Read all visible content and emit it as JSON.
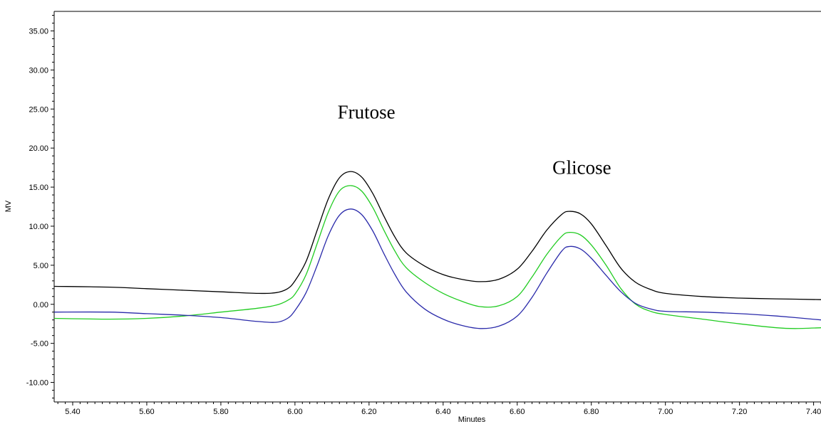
{
  "chart_data": {
    "type": "line",
    "title": "",
    "xlabel": "Minutes",
    "ylabel": "MV",
    "xlim": [
      5.35,
      7.42
    ],
    "ylim": [
      -12.5,
      37.5
    ],
    "grid": false,
    "x_ticks": [
      {
        "value": 5.4,
        "label": "5.40"
      },
      {
        "value": 5.6,
        "label": "5.60"
      },
      {
        "value": 5.8,
        "label": "5.80"
      },
      {
        "value": 6.0,
        "label": "6.00"
      },
      {
        "value": 6.2,
        "label": "6.20"
      },
      {
        "value": 6.4,
        "label": "6.40"
      },
      {
        "value": 6.6,
        "label": "6.60"
      },
      {
        "value": 6.8,
        "label": "6.80"
      },
      {
        "value": 7.0,
        "label": "7.00"
      },
      {
        "value": 7.2,
        "label": "7.20"
      },
      {
        "value": 7.4,
        "label": "7.40"
      }
    ],
    "y_ticks": [
      {
        "value": -10,
        "label": "-10.00"
      },
      {
        "value": -5,
        "label": "-5.00"
      },
      {
        "value": 0,
        "label": "0.00"
      },
      {
        "value": 5,
        "label": "5.00"
      },
      {
        "value": 10,
        "label": "10.00"
      },
      {
        "value": 15,
        "label": "15.00"
      },
      {
        "value": 20,
        "label": "20.00"
      },
      {
        "value": 25,
        "label": "25.00"
      },
      {
        "value": 30,
        "label": "30.00"
      },
      {
        "value": 35,
        "label": "35.00"
      }
    ],
    "series": [
      {
        "color": "#000000",
        "points": [
          [
            5.35,
            2.3
          ],
          [
            5.5,
            2.2
          ],
          [
            5.6,
            2.0
          ],
          [
            5.7,
            1.8
          ],
          [
            5.8,
            1.6
          ],
          [
            5.9,
            1.4
          ],
          [
            5.95,
            1.5
          ],
          [
            5.98,
            2.0
          ],
          [
            6.0,
            3.0
          ],
          [
            6.03,
            5.5
          ],
          [
            6.06,
            9.5
          ],
          [
            6.09,
            13.5
          ],
          [
            6.12,
            16.2
          ],
          [
            6.15,
            17.0
          ],
          [
            6.18,
            16.3
          ],
          [
            6.21,
            14.2
          ],
          [
            6.24,
            11.3
          ],
          [
            6.27,
            8.6
          ],
          [
            6.3,
            6.6
          ],
          [
            6.35,
            4.9
          ],
          [
            6.4,
            3.8
          ],
          [
            6.45,
            3.2
          ],
          [
            6.5,
            2.9
          ],
          [
            6.55,
            3.2
          ],
          [
            6.6,
            4.5
          ],
          [
            6.64,
            6.8
          ],
          [
            6.68,
            9.5
          ],
          [
            6.72,
            11.5
          ],
          [
            6.74,
            11.9
          ],
          [
            6.77,
            11.6
          ],
          [
            6.8,
            10.3
          ],
          [
            6.84,
            7.5
          ],
          [
            6.88,
            4.6
          ],
          [
            6.92,
            2.8
          ],
          [
            6.96,
            1.9
          ],
          [
            7.0,
            1.4
          ],
          [
            7.1,
            1.0
          ],
          [
            7.2,
            0.8
          ],
          [
            7.3,
            0.7
          ],
          [
            7.42,
            0.6
          ]
        ]
      },
      {
        "color": "#22cc22",
        "points": [
          [
            5.35,
            -1.8
          ],
          [
            5.5,
            -1.9
          ],
          [
            5.6,
            -1.8
          ],
          [
            5.7,
            -1.5
          ],
          [
            5.8,
            -1.0
          ],
          [
            5.9,
            -0.5
          ],
          [
            5.95,
            -0.1
          ],
          [
            5.98,
            0.5
          ],
          [
            6.0,
            1.3
          ],
          [
            6.03,
            3.8
          ],
          [
            6.06,
            7.8
          ],
          [
            6.09,
            11.8
          ],
          [
            6.12,
            14.5
          ],
          [
            6.15,
            15.2
          ],
          [
            6.18,
            14.5
          ],
          [
            6.21,
            12.4
          ],
          [
            6.24,
            9.5
          ],
          [
            6.27,
            6.8
          ],
          [
            6.3,
            4.7
          ],
          [
            6.35,
            2.8
          ],
          [
            6.4,
            1.4
          ],
          [
            6.45,
            0.4
          ],
          [
            6.5,
            -0.3
          ],
          [
            6.55,
            -0.2
          ],
          [
            6.6,
            1.0
          ],
          [
            6.64,
            3.5
          ],
          [
            6.68,
            6.4
          ],
          [
            6.72,
            8.7
          ],
          [
            6.74,
            9.2
          ],
          [
            6.77,
            8.9
          ],
          [
            6.8,
            7.6
          ],
          [
            6.84,
            5.0
          ],
          [
            6.88,
            2.0
          ],
          [
            6.92,
            0.0
          ],
          [
            6.96,
            -0.9
          ],
          [
            7.0,
            -1.3
          ],
          [
            7.1,
            -1.9
          ],
          [
            7.2,
            -2.5
          ],
          [
            7.3,
            -3.0
          ],
          [
            7.35,
            -3.1
          ],
          [
            7.42,
            -3.0
          ]
        ]
      },
      {
        "color": "#2a2aaa",
        "points": [
          [
            5.35,
            -1.0
          ],
          [
            5.5,
            -1.0
          ],
          [
            5.6,
            -1.2
          ],
          [
            5.7,
            -1.4
          ],
          [
            5.8,
            -1.7
          ],
          [
            5.9,
            -2.2
          ],
          [
            5.95,
            -2.3
          ],
          [
            5.98,
            -1.8
          ],
          [
            6.0,
            -0.8
          ],
          [
            6.03,
            1.5
          ],
          [
            6.06,
            5.0
          ],
          [
            6.09,
            8.8
          ],
          [
            6.12,
            11.4
          ],
          [
            6.15,
            12.2
          ],
          [
            6.18,
            11.5
          ],
          [
            6.21,
            9.4
          ],
          [
            6.24,
            6.5
          ],
          [
            6.27,
            3.8
          ],
          [
            6.3,
            1.6
          ],
          [
            6.35,
            -0.6
          ],
          [
            6.4,
            -1.9
          ],
          [
            6.45,
            -2.7
          ],
          [
            6.5,
            -3.1
          ],
          [
            6.55,
            -2.8
          ],
          [
            6.6,
            -1.5
          ],
          [
            6.64,
            0.9
          ],
          [
            6.68,
            4.0
          ],
          [
            6.72,
            6.8
          ],
          [
            6.74,
            7.4
          ],
          [
            6.77,
            7.1
          ],
          [
            6.8,
            5.9
          ],
          [
            6.84,
            3.7
          ],
          [
            6.88,
            1.6
          ],
          [
            6.92,
            0.1
          ],
          [
            6.96,
            -0.6
          ],
          [
            7.0,
            -0.9
          ],
          [
            7.1,
            -1.0
          ],
          [
            7.2,
            -1.2
          ],
          [
            7.3,
            -1.5
          ],
          [
            7.42,
            -2.0
          ]
        ]
      }
    ],
    "annotations": [
      {
        "text": "Frutose",
        "x": 6.115,
        "y": 23.8
      },
      {
        "text": "Glicose",
        "x": 6.695,
        "y": 16.7
      }
    ]
  }
}
